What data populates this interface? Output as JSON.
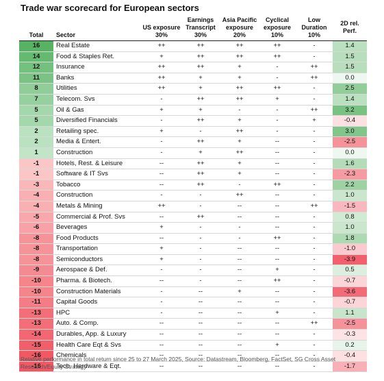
{
  "title": "Trade war scorecard for European sectors",
  "table": {
    "headers": {
      "total": "Total",
      "sector": "Sector",
      "factors": [
        {
          "label": "US exposure",
          "weight": "30%"
        },
        {
          "label": "Earnings Transcript",
          "weight": "30%"
        },
        {
          "label": "Asia Pacific exposure",
          "weight": "20%"
        },
        {
          "label": "Cyclical exposure",
          "weight": "10%"
        },
        {
          "label": "Low Duration",
          "weight": "10%"
        }
      ],
      "perf": "2D rel. Perf."
    },
    "rows": [
      [
        16,
        "Real Estate",
        "++",
        "++",
        "++",
        "++",
        "-",
        "1.4"
      ],
      [
        14,
        "Food & Staples Ret.",
        "+",
        "++",
        "++",
        "++",
        "-",
        "1.5"
      ],
      [
        12,
        "Insurance",
        "++",
        "++",
        "+",
        "-",
        "++",
        "1.5"
      ],
      [
        11,
        "Banks",
        "++",
        "+",
        "+",
        "-",
        "++",
        "0.0"
      ],
      [
        8,
        "Utilities",
        "++",
        "+",
        "++",
        "++",
        "-",
        "2.5"
      ],
      [
        7,
        "Telecom. Svs",
        "-",
        "++",
        "++",
        "+",
        "-",
        "1.4"
      ],
      [
        5,
        "Oil & Gas",
        "+",
        "+",
        "-",
        "-",
        "++",
        "3.2"
      ],
      [
        5,
        "Diversified Financials",
        "-",
        "++",
        "+",
        "-",
        "+",
        "-0.4"
      ],
      [
        2,
        "Retailing spec.",
        "+",
        "-",
        "++",
        "-",
        "-",
        "3.0"
      ],
      [
        2,
        "Media & Entert.",
        "-",
        "++",
        "+",
        "--",
        "-",
        "-2.5"
      ],
      [
        1,
        "Construction",
        "-",
        "+",
        "++",
        "--",
        "-",
        "0.0"
      ],
      [
        -1,
        "Hotels, Rest. & Leisure",
        "--",
        "++",
        "+",
        "--",
        "-",
        "1.6"
      ],
      [
        -1,
        "Software & IT Svs",
        "--",
        "++",
        "+",
        "--",
        "-",
        "-2.3"
      ],
      [
        -3,
        "Tobacco",
        "--",
        "++",
        "-",
        "++",
        "-",
        "2.2"
      ],
      [
        -4,
        "Construction",
        "-",
        "-",
        "++",
        "--",
        "-",
        "1.0"
      ],
      [
        -4,
        "Metals & Mining",
        "++",
        "-",
        "--",
        "--",
        "++",
        "-1.5"
      ],
      [
        -5,
        "Commercial & Prof. Svs",
        "--",
        "++",
        "--",
        "--",
        "-",
        "0.8"
      ],
      [
        -6,
        "Beverages",
        "+",
        "-",
        "-",
        "--",
        "-",
        "1.0"
      ],
      [
        -8,
        "Food Products",
        "--",
        "-",
        "-",
        "++",
        "-",
        "1.8"
      ],
      [
        -8,
        "Transportation",
        "+",
        "-",
        "--",
        "--",
        "-",
        "-1.0"
      ],
      [
        -8,
        "Semiconductors",
        "+",
        "-",
        "--",
        "--",
        "-",
        "-3.9"
      ],
      [
        -9,
        "Aerospace & Def.",
        "-",
        "-",
        "--",
        "+",
        "-",
        "0.5"
      ],
      [
        -10,
        "Pharma. & Biotech.",
        "--",
        "-",
        "--",
        "++",
        "-",
        "-0.7"
      ],
      [
        -10,
        "Construction Materials",
        "-",
        "--",
        "+",
        "--",
        "-",
        "-3.6"
      ],
      [
        -11,
        "Capital Goods",
        "-",
        "--",
        "--",
        "--",
        "-",
        "-0.7"
      ],
      [
        -13,
        "HPC",
        "-",
        "--",
        "--",
        "+",
        "-",
        "1.1"
      ],
      [
        -13,
        "Auto. & Comp.",
        "--",
        "--",
        "--",
        "--",
        "++",
        "-2.5"
      ],
      [
        -14,
        "Durables, App. & Luxury",
        "--",
        "--",
        "--",
        "--",
        "-",
        "-0.3"
      ],
      [
        -15,
        "Health Care Eqt & Svs",
        "--",
        "--",
        "--",
        "+",
        "-",
        "0.2"
      ],
      [
        -16,
        "Chemicals",
        "--",
        "--",
        "--",
        "--",
        "-",
        "-0.4"
      ],
      [
        -16,
        "Tech. Hardware & Eqt.",
        "--",
        "--",
        "--",
        "--",
        "-",
        "-1.7"
      ]
    ]
  },
  "footnote": "Relative performance in total return since 25 to 27 March 2025, Source: Datastream, Bloomberg, FactSet, SG Cross Asset Research/Equity Strategy"
}
